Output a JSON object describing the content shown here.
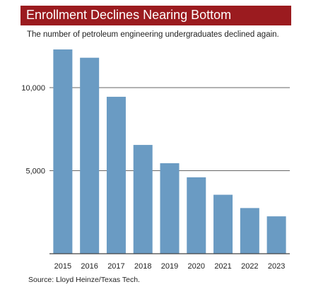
{
  "header": {
    "title": "Enrollment Declines Nearing Bottom",
    "subtitle": "The number of petroleum engineering undergraduates declined again."
  },
  "footer": {
    "source": "Source: Lloyd Heinze/Texas Tech."
  },
  "colors": {
    "banner": "#9b1b1f",
    "bar": "#6a9bc3",
    "gridline": "#666666"
  },
  "chart_data": {
    "type": "bar",
    "categories": [
      "2015",
      "2016",
      "2017",
      "2018",
      "2019",
      "2020",
      "2021",
      "2022",
      "2023"
    ],
    "values": [
      12300,
      11800,
      9450,
      6550,
      5450,
      4600,
      3550,
      2750,
      2250
    ],
    "yticks": [
      5000,
      10000
    ],
    "ytick_labels": [
      "5,000",
      "10,000"
    ],
    "ylim": [
      0,
      13000
    ],
    "grid": true,
    "legend": "none"
  }
}
